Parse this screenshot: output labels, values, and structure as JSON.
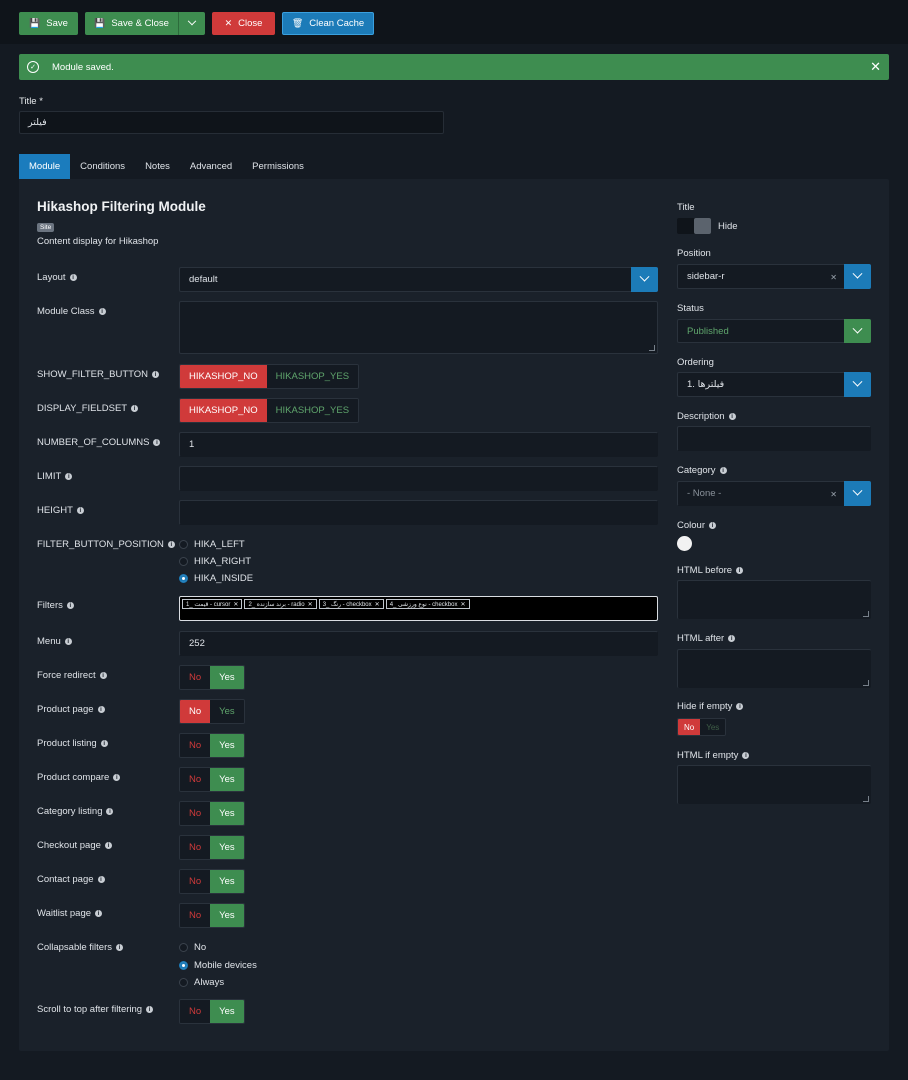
{
  "toolbar": {
    "save_label": "Save",
    "save_close_label": "Save & Close",
    "close_label": "Close",
    "clean_cache_label": "Clean Cache"
  },
  "alert": {
    "message": "Module saved."
  },
  "title_field": {
    "label": "Title *",
    "value": "فیلتر"
  },
  "tabs": [
    {
      "label": "Module"
    },
    {
      "label": "Conditions"
    },
    {
      "label": "Notes"
    },
    {
      "label": "Advanced"
    },
    {
      "label": "Permissions"
    }
  ],
  "module": {
    "heading": "Hikashop Filtering Module",
    "badge": "Site",
    "description": "Content display for Hikashop"
  },
  "fields": {
    "layout": {
      "label": "Layout",
      "value": "default"
    },
    "module_class": {
      "label": "Module Class"
    },
    "show_filter_button": {
      "label": "SHOW_FILTER_BUTTON",
      "no": "HIKASHOP_NO",
      "yes": "HIKASHOP_YES"
    },
    "display_fieldset": {
      "label": "DISPLAY_FIELDSET",
      "no": "HIKASHOP_NO",
      "yes": "HIKASHOP_YES"
    },
    "number_of_columns": {
      "label": "NUMBER_OF_COLUMNS",
      "value": "1"
    },
    "limit": {
      "label": "LIMIT"
    },
    "height": {
      "label": "HEIGHT"
    },
    "filter_button_position": {
      "label": "FILTER_BUTTON_POSITION",
      "options": [
        "HIKA_LEFT",
        "HIKA_RIGHT",
        "HIKA_INSIDE"
      ]
    },
    "filters": {
      "label": "Filters",
      "chips": [
        "1_ قیمت - cursor",
        "2_ برند سازنده - radio",
        "3_ رنگ - checkbox",
        "4_ نوع ورزشی - checkbox"
      ]
    },
    "menu": {
      "label": "Menu",
      "value": "252"
    },
    "force_redirect": {
      "label": "Force redirect"
    },
    "product_page": {
      "label": "Product page"
    },
    "product_listing": {
      "label": "Product listing"
    },
    "product_compare": {
      "label": "Product compare"
    },
    "category_listing": {
      "label": "Category listing"
    },
    "checkout_page": {
      "label": "Checkout page"
    },
    "contact_page": {
      "label": "Contact page"
    },
    "waitlist_page": {
      "label": "Waitlist page"
    },
    "collapsable_filters": {
      "label": "Collapsable filters",
      "options": [
        "No",
        "Mobile devices",
        "Always"
      ]
    },
    "scroll_to_top": {
      "label": "Scroll to top after filtering"
    },
    "no_label": "No",
    "yes_label": "Yes"
  },
  "sidebar": {
    "title": {
      "label": "Title",
      "switch_label": "Hide"
    },
    "position": {
      "label": "Position",
      "value": "sidebar-r"
    },
    "status": {
      "label": "Status",
      "value": "Published"
    },
    "ordering": {
      "label": "Ordering",
      "value": "1. فیلترها"
    },
    "description": {
      "label": "Description"
    },
    "category": {
      "label": "Category",
      "value": "- None -"
    },
    "colour": {
      "label": "Colour"
    },
    "html_before": {
      "label": "HTML before"
    },
    "html_after": {
      "label": "HTML after"
    },
    "hide_if_empty": {
      "label": "Hide if empty",
      "no": "No",
      "yes": "Yes"
    },
    "html_if_empty": {
      "label": "HTML if empty"
    }
  },
  "colors": {
    "green": "#3e8d50",
    "red": "#d03a3a",
    "blue": "#1c7bb8",
    "background": "#141a22",
    "panel": "#1a212a"
  }
}
